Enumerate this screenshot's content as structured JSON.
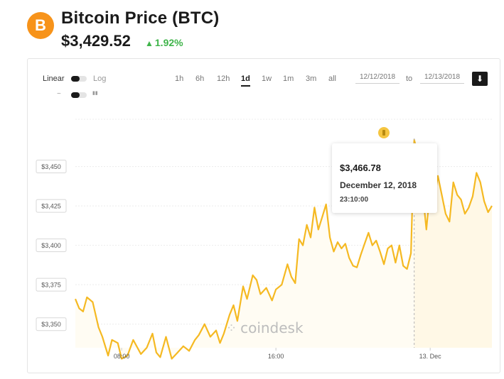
{
  "header": {
    "logo_glyph": "B",
    "title": "Bitcoin Price (BTC)",
    "price": "$3,429.52",
    "change_arrow": "▲",
    "change": "1.92%"
  },
  "controls": {
    "linear_label": "Linear",
    "log_label": "Log",
    "line_icon": "~",
    "bar_icon": "▮▮"
  },
  "ranges": [
    "1h",
    "6h",
    "12h",
    "1d",
    "1w",
    "1m",
    "3m",
    "all"
  ],
  "active_range": "1d",
  "date_from": "12/12/2018",
  "to_label": "to",
  "date_to": "12/13/2018",
  "download_icon": "⬇",
  "tooltip": {
    "price": "$3,466.78",
    "date": "December 12, 2018",
    "time": "23:10:00"
  },
  "watermark": "coindesk",
  "colors": {
    "line": "#f5b922",
    "fill": "#fff8e6",
    "accent": "#f7931a",
    "up": "#3fb44a"
  },
  "chart_data": {
    "type": "area",
    "title": "",
    "xlabel": "",
    "ylabel": "",
    "ylim": [
      3335,
      3480
    ],
    "y_ticks": [
      "$3,350",
      "$3,375",
      "$3,400",
      "$3,425",
      "$3,450"
    ],
    "y_tick_values": [
      3350,
      3375,
      3400,
      3425,
      3450
    ],
    "x_ticks": [
      "08:00",
      "16:00",
      "13. Dec"
    ],
    "x_tick_hours": [
      8,
      16,
      24
    ],
    "x_range_hours": [
      5.6,
      27.2
    ],
    "grid": true,
    "hover_hour": 23.17,
    "series": [
      {
        "x": [
          5.6,
          5.8,
          6.0,
          6.2,
          6.5,
          6.8,
          7.0,
          7.3,
          7.5,
          7.8,
          8.0,
          8.3,
          8.6,
          9.0,
          9.3,
          9.6,
          9.8,
          10.0,
          10.3,
          10.6,
          10.9,
          11.2,
          11.5,
          11.8,
          12.0,
          12.3,
          12.6,
          12.9,
          13.1,
          13.3,
          13.6,
          13.8,
          14.0,
          14.3,
          14.5,
          14.8,
          15.0,
          15.2,
          15.5,
          15.8,
          16.0,
          16.3,
          16.6,
          16.8,
          17.0,
          17.2,
          17.4,
          17.6,
          17.8,
          18.0,
          18.2,
          18.4,
          18.6,
          18.8,
          19.0,
          19.2,
          19.4,
          19.6,
          19.8,
          20.0,
          20.2,
          20.4,
          20.6,
          20.8,
          21.0,
          21.2,
          21.4,
          21.6,
          21.8,
          22.0,
          22.2,
          22.4,
          22.6,
          22.8,
          23.0,
          23.17,
          23.4,
          23.6,
          23.8,
          24.0,
          24.2,
          24.4,
          24.6,
          24.8,
          25.0,
          25.2,
          25.4,
          25.6,
          25.8,
          26.0,
          26.2,
          26.4,
          26.6,
          26.8,
          27.0,
          27.2
        ],
        "values": [
          3366,
          3360,
          3358,
          3367,
          3364,
          3348,
          3342,
          3330,
          3340,
          3338,
          3328,
          3330,
          3340,
          3331,
          3335,
          3344,
          3332,
          3329,
          3342,
          3328,
          3332,
          3336,
          3333,
          3340,
          3343,
          3350,
          3342,
          3346,
          3338,
          3344,
          3356,
          3362,
          3352,
          3374,
          3366,
          3381,
          3378,
          3369,
          3373,
          3365,
          3372,
          3375,
          3388,
          3380,
          3376,
          3404,
          3400,
          3413,
          3405,
          3424,
          3410,
          3418,
          3426,
          3405,
          3396,
          3402,
          3398,
          3401,
          3392,
          3387,
          3386,
          3394,
          3401,
          3408,
          3400,
          3403,
          3396,
          3388,
          3398,
          3400,
          3389,
          3400,
          3387,
          3385,
          3395,
          3467,
          3455,
          3435,
          3410,
          3436,
          3428,
          3444,
          3432,
          3420,
          3415,
          3440,
          3432,
          3429,
          3420,
          3424,
          3431,
          3446,
          3440,
          3428,
          3421,
          3425
        ]
      }
    ]
  }
}
